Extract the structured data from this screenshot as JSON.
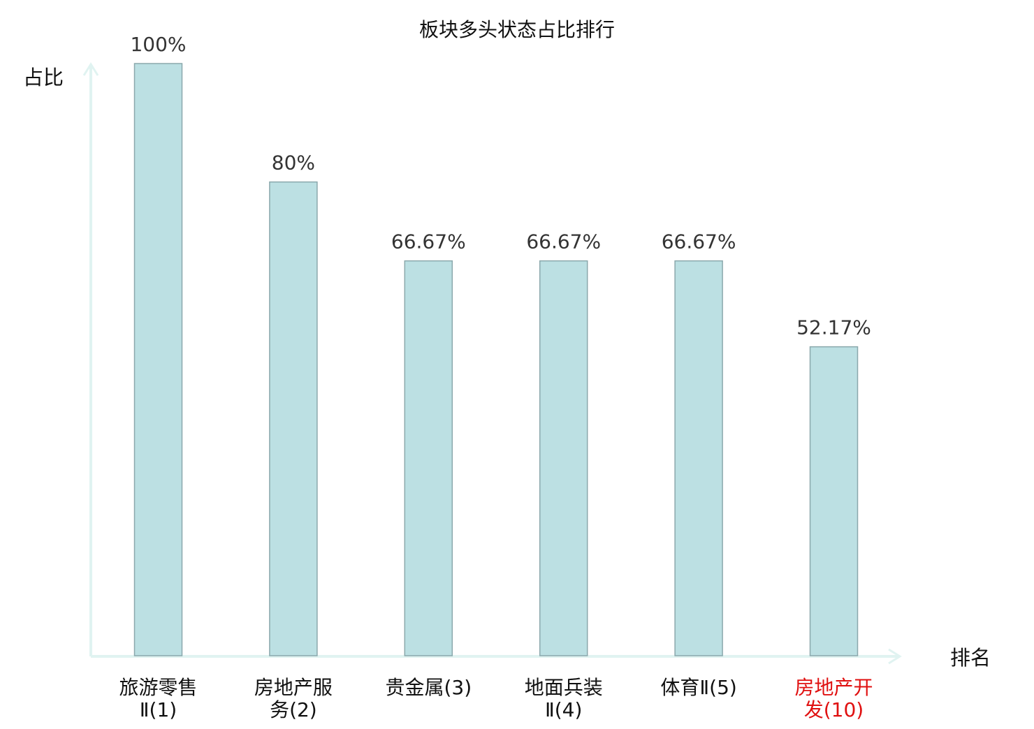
{
  "chart_data": {
    "type": "bar",
    "title": "板块多头状态占比排行",
    "ylabel": "占比",
    "xlabel": "排名",
    "ylim": [
      0,
      100
    ],
    "unit": "%",
    "grid": false,
    "legend": "none",
    "categories": [
      {
        "name": "旅游零售",
        "suffix": "Ⅱ",
        "rank": "(1)",
        "highlight": false
      },
      {
        "name": "房地产服",
        "suffix": "务",
        "rank": "(2)",
        "highlight": false
      },
      {
        "name": "贵金属",
        "suffix": "",
        "rank": "(3)",
        "highlight": false
      },
      {
        "name": "地面兵装",
        "suffix": "Ⅱ",
        "rank": "(4)",
        "highlight": false
      },
      {
        "name": "体育Ⅱ",
        "suffix": "",
        "rank": "(5)",
        "highlight": false
      },
      {
        "name": "房地产开",
        "suffix": "发",
        "rank": "(10)",
        "highlight": true
      }
    ],
    "values": [
      100,
      80,
      66.67,
      66.67,
      66.67,
      52.17
    ],
    "value_labels": [
      "100%",
      "80%",
      "66.67%",
      "66.67%",
      "66.67%",
      "52.17%"
    ]
  },
  "colors": {
    "bar_fill": "#bce0e3",
    "bar_stroke": "#8aa8ac",
    "axis": "#e0f3f1",
    "text": "#333333",
    "title": "#111111",
    "highlight": "#e01010"
  }
}
